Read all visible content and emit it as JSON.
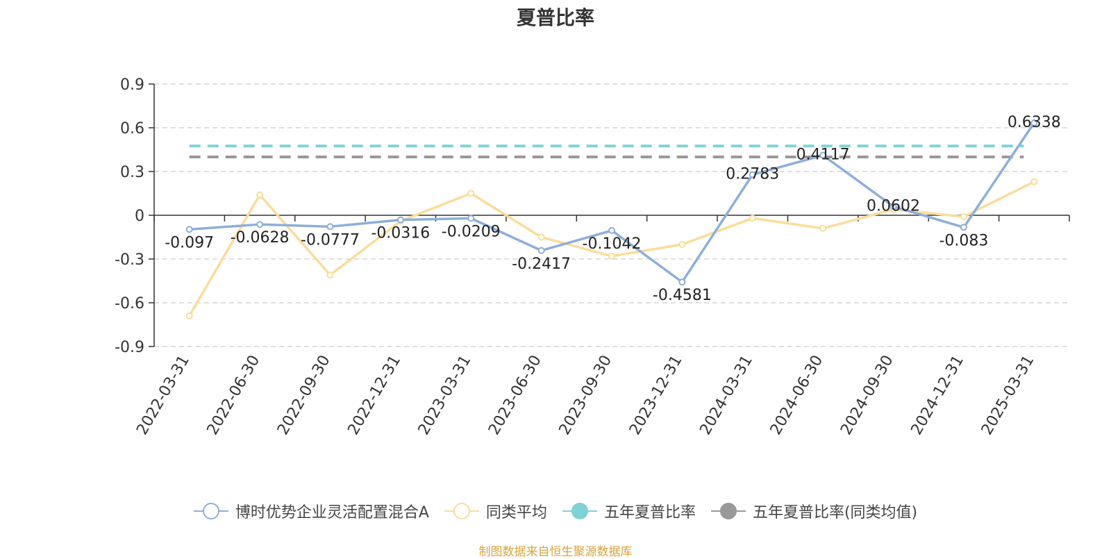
{
  "title": "夏普比率",
  "footer": "制图数据来自恒生聚源数据库",
  "chart_data": {
    "type": "line",
    "categories": [
      "2022-03-31",
      "2022-06-30",
      "2022-09-30",
      "2022-12-31",
      "2023-03-31",
      "2023-06-30",
      "2023-09-30",
      "2023-12-31",
      "2024-03-31",
      "2024-06-30",
      "2024-09-30",
      "2024-12-31",
      "2025-03-31"
    ],
    "ylim": [
      -0.9,
      0.9
    ],
    "yticks": [
      "0.9",
      "0.6",
      "0.3",
      "0",
      "-0.3",
      "-0.6",
      "-0.9"
    ],
    "grid": true,
    "legend_position": "bottom",
    "series": [
      {
        "name": "博时优势企业灵活配置混合A",
        "color": "#8eaedb",
        "show_labels": true,
        "values": [
          -0.097,
          -0.0628,
          -0.0777,
          -0.0316,
          -0.0209,
          -0.2417,
          -0.1042,
          -0.4581,
          0.2783,
          0.4117,
          0.0602,
          -0.083,
          0.6338
        ],
        "labels": [
          "-0.097",
          "-0.0628",
          "-0.0777",
          "-0.0316",
          "-0.0209",
          "-0.2417",
          "-0.1042",
          "-0.4581",
          "0.2783",
          "0.4117",
          "0.0602",
          "-0.083",
          "0.6338"
        ]
      },
      {
        "name": "同类平均",
        "color": "#fbdc9a",
        "show_labels": false,
        "values": [
          -0.69,
          0.14,
          -0.41,
          -0.04,
          0.15,
          -0.15,
          -0.28,
          -0.2,
          -0.02,
          -0.09,
          0.04,
          -0.01,
          0.23
        ]
      }
    ],
    "reference_lines": [
      {
        "name": "五年夏普比率",
        "value": 0.475,
        "color": "#7fd3d6"
      },
      {
        "name": "五年夏普比率(同类均值)",
        "value": 0.4,
        "color": "#999999"
      }
    ]
  }
}
